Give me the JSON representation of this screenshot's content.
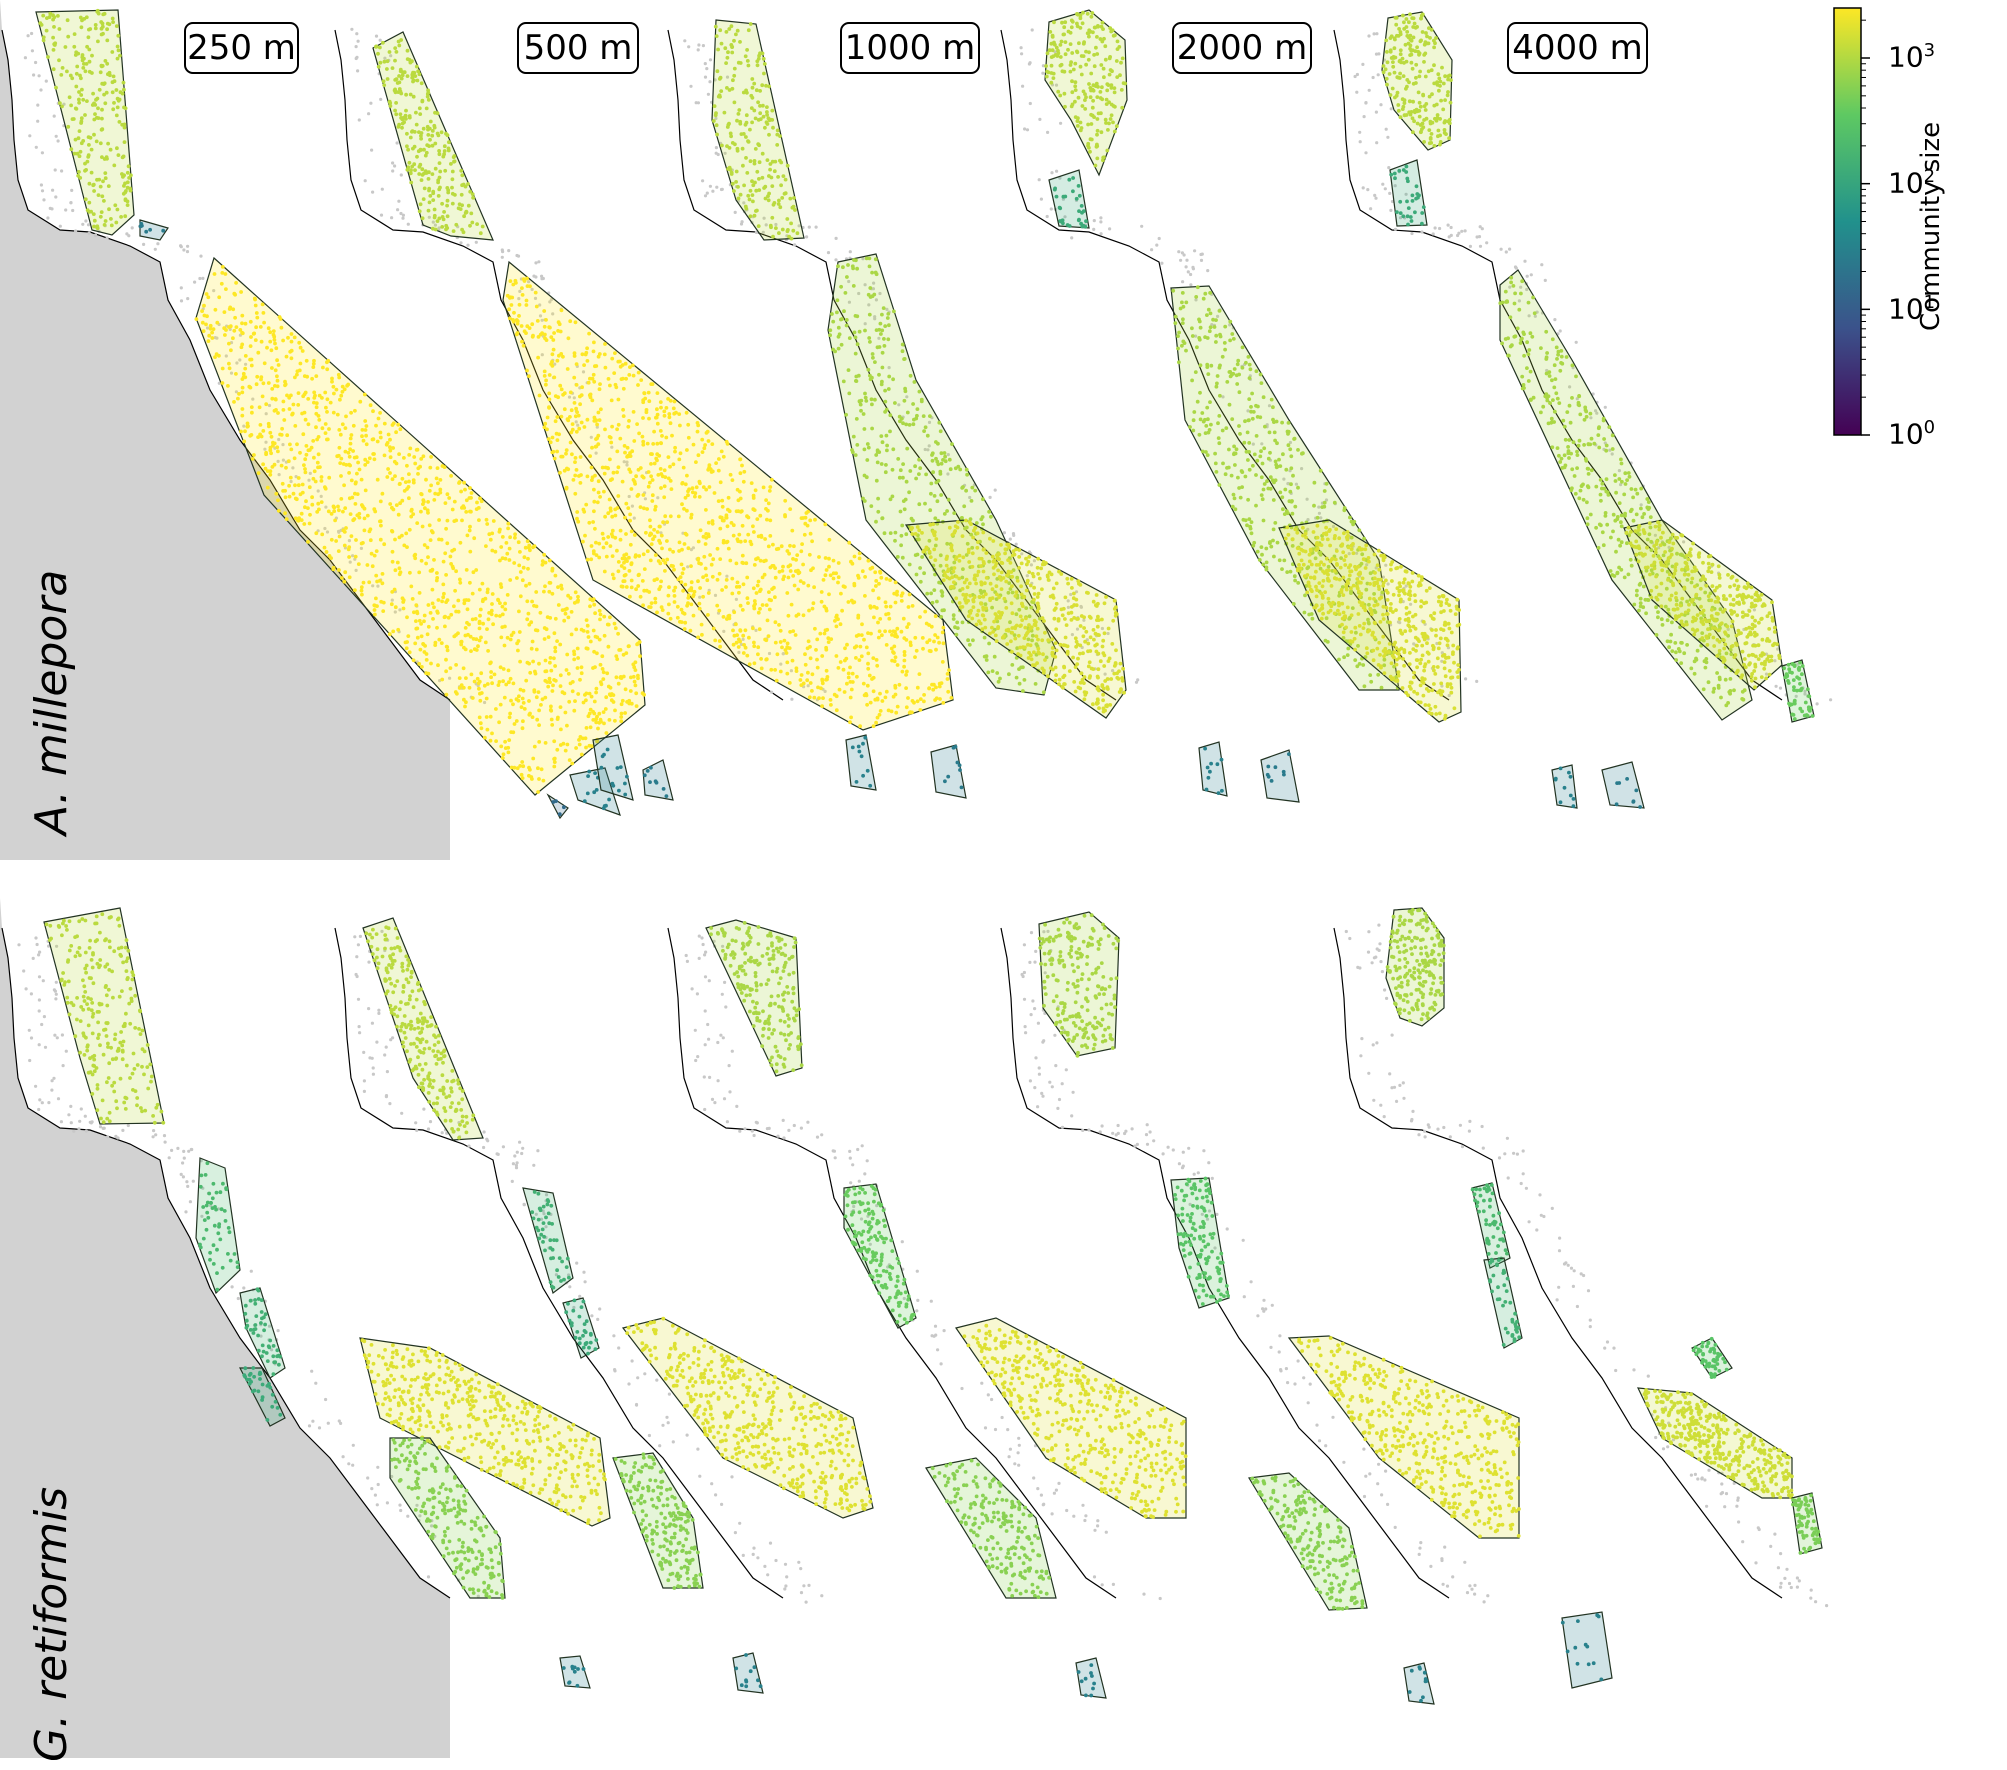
{
  "columns": [
    {
      "label": "250 m"
    },
    {
      "label": "500 m"
    },
    {
      "label": "1000 m"
    },
    {
      "label": "2000 m"
    },
    {
      "label": "4000 m"
    }
  ],
  "rows": [
    {
      "species": "A. millepora"
    },
    {
      "species": "G. retiformis"
    }
  ],
  "colorbar": {
    "title": "Community size",
    "scale": "log",
    "range": [
      1,
      2500
    ],
    "tick_values": [
      1,
      10,
      100,
      1000
    ],
    "tick_base": "10",
    "tick_exponents": [
      "0",
      "1",
      "2",
      "3"
    ],
    "colormap": "viridis"
  },
  "colors": {
    "land": "#d2d2d2",
    "unassigned_reef": "#c8c8c8",
    "coastline": "#000000",
    "hull_edge": "#223322",
    "viridis": [
      "#440154",
      "#3b528b",
      "#21918c",
      "#5ec962",
      "#fde725"
    ]
  },
  "community_sizes": {
    "A. millepora": {
      "250 m": [
        1100,
        2500,
        30,
        25,
        15
      ],
      "500 m": [
        1100,
        2500,
        30,
        25
      ],
      "1000 m": [
        1100,
        900,
        1600,
        30,
        25
      ],
      "2000 m": [
        1100,
        120,
        900,
        1600,
        30,
        25
      ],
      "4000 m": [
        1100,
        120,
        900,
        1400,
        400,
        30,
        25
      ]
    },
    "G. retiformis": {
      "250 m": [
        1100,
        200,
        150,
        120,
        1700,
        600,
        30
      ],
      "500 m": [
        1100,
        150,
        120,
        1700,
        600,
        30
      ],
      "1000 m": [
        900,
        400,
        1700,
        600,
        30
      ],
      "2000 m": [
        900,
        300,
        1700,
        600,
        30
      ],
      "4000 m": [
        900,
        200,
        150,
        1400,
        500,
        300,
        30
      ]
    }
  }
}
